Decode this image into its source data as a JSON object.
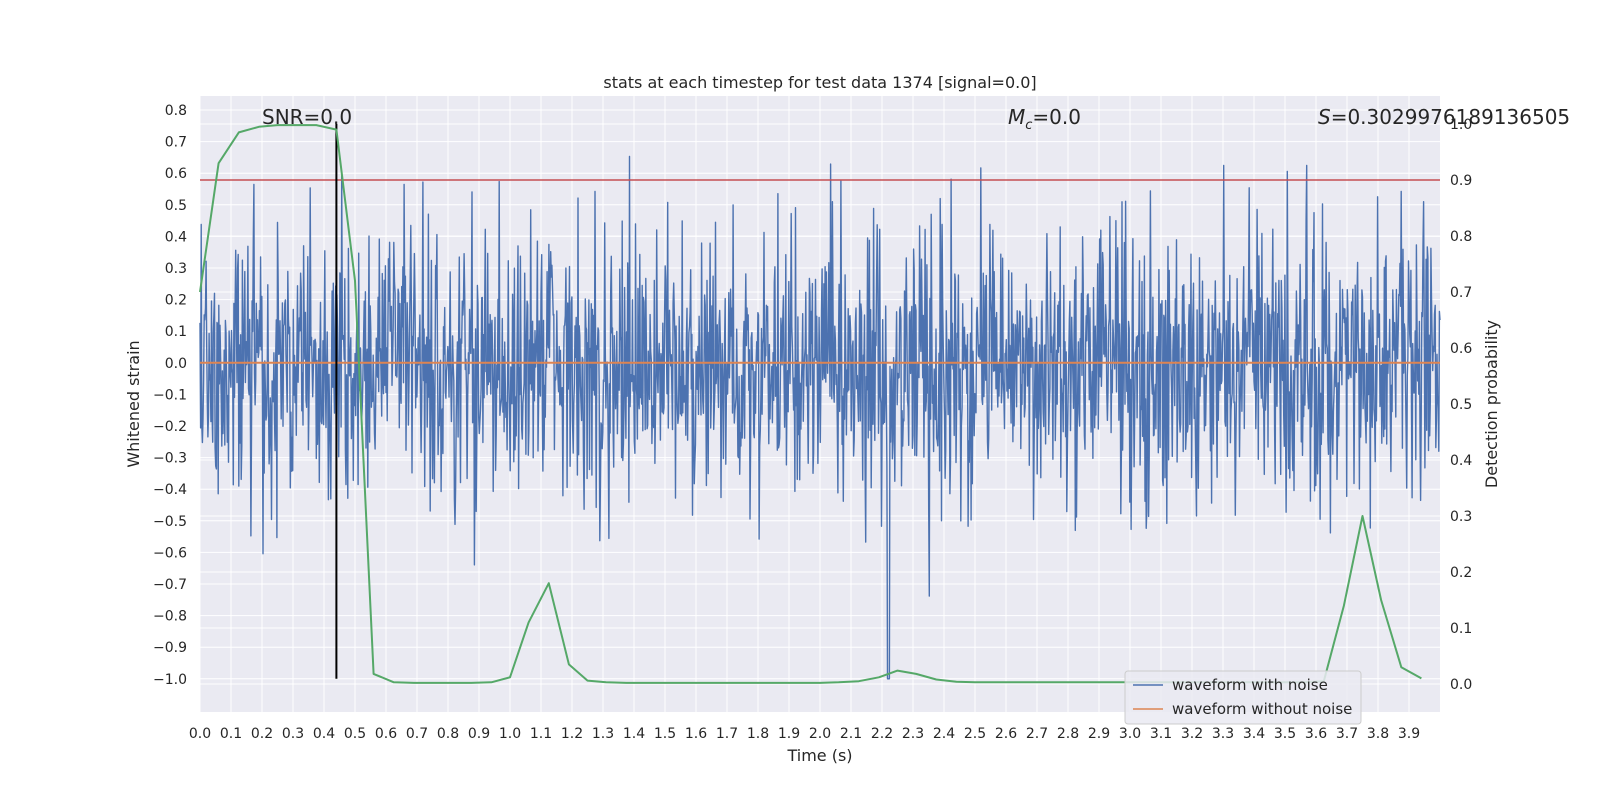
{
  "chart_data": {
    "type": "line",
    "title": "stats at each timestep for test data 1374 [signal=0.0]",
    "xlabel": "Time (s)",
    "ylabel": "Whitened strain",
    "y2label": "Detection probability",
    "xlim": [
      0.0,
      4.0
    ],
    "ylim": [
      -1.08,
      0.86
    ],
    "y2lim": [
      -0.05,
      1.05
    ],
    "x_ticks": [
      "0.0",
      "0.1",
      "0.2",
      "0.3",
      "0.4",
      "0.5",
      "0.6",
      "0.7",
      "0.8",
      "0.9",
      "1.0",
      "1.1",
      "1.2",
      "1.3",
      "1.4",
      "1.5",
      "1.6",
      "1.7",
      "1.8",
      "1.9",
      "2.0",
      "2.1",
      "2.2",
      "2.3",
      "2.4",
      "2.5",
      "2.6",
      "2.7",
      "2.8",
      "2.9",
      "3.0",
      "3.1",
      "3.2",
      "3.3",
      "3.4",
      "3.5",
      "3.6",
      "3.7",
      "3.8",
      "3.9"
    ],
    "y_ticks": [
      "0.8",
      "0.7",
      "0.6",
      "0.5",
      "0.4",
      "0.3",
      "0.2",
      "0.1",
      "0.0",
      "−0.1",
      "−0.2",
      "−0.3",
      "−0.4",
      "−0.5",
      "−0.6",
      "−0.7",
      "−0.8",
      "−0.9",
      "−1.0"
    ],
    "y2_ticks": [
      "1.0",
      "0.9",
      "0.8",
      "0.7",
      "0.6",
      "0.5",
      "0.4",
      "0.3",
      "0.2",
      "0.1",
      "0.0"
    ],
    "annotations": {
      "snr": "SNR=0.0",
      "mc_symbol": "M",
      "mc_sub": "c",
      "mc_value": "=0.0",
      "s_symbol": "S",
      "s_value": "=0.3029976189136505"
    },
    "threshold_y2": 0.9,
    "marker_time": 0.44,
    "legend": {
      "placement": "lower right",
      "entries": [
        "waveform with noise",
        "waveform without noise"
      ]
    },
    "series": [
      {
        "name": "waveform with noise",
        "color": "#4c72b0",
        "axis": "left",
        "x_range": [
          0.0,
          4.0
        ],
        "n_samples": 2048,
        "y_range": [
          -1.0,
          0.77
        ]
      },
      {
        "name": "waveform without noise",
        "color": "#dd8452",
        "axis": "left",
        "x": [
          0.0,
          4.0
        ],
        "y": [
          0.0,
          0.0
        ]
      },
      {
        "color": "#55a868",
        "axis": "right",
        "x": [
          0.0,
          0.06,
          0.125,
          0.19,
          0.25,
          0.31,
          0.375,
          0.44,
          0.5,
          0.56,
          0.625,
          0.69,
          0.75,
          0.81,
          0.875,
          0.94,
          1.0,
          1.06,
          1.125,
          1.19,
          1.25,
          1.31,
          1.375,
          1.44,
          1.5,
          1.56,
          1.625,
          1.69,
          1.75,
          1.81,
          1.875,
          1.94,
          2.0,
          2.06,
          2.125,
          2.19,
          2.25,
          2.31,
          2.375,
          2.44,
          2.5,
          2.56,
          2.625,
          2.69,
          2.75,
          2.81,
          2.875,
          2.94,
          3.0,
          3.06,
          3.125,
          3.19,
          3.25,
          3.31,
          3.375,
          3.44,
          3.5,
          3.56,
          3.625,
          3.69,
          3.75,
          3.81,
          3.875,
          3.94
        ],
        "y": [
          0.7,
          0.93,
          0.985,
          0.995,
          0.998,
          0.998,
          0.998,
          0.99,
          0.72,
          0.018,
          0.003,
          0.002,
          0.002,
          0.002,
          0.002,
          0.003,
          0.012,
          0.11,
          0.18,
          0.035,
          0.006,
          0.003,
          0.002,
          0.002,
          0.002,
          0.002,
          0.002,
          0.002,
          0.002,
          0.002,
          0.002,
          0.002,
          0.002,
          0.003,
          0.005,
          0.012,
          0.024,
          0.018,
          0.008,
          0.004,
          0.003,
          0.003,
          0.003,
          0.003,
          0.003,
          0.003,
          0.003,
          0.003,
          0.003,
          0.003,
          0.003,
          0.003,
          0.003,
          0.003,
          0.003,
          0.003,
          0.003,
          0.003,
          0.005,
          0.14,
          0.3,
          0.15,
          0.03,
          0.01
        ]
      }
    ]
  }
}
